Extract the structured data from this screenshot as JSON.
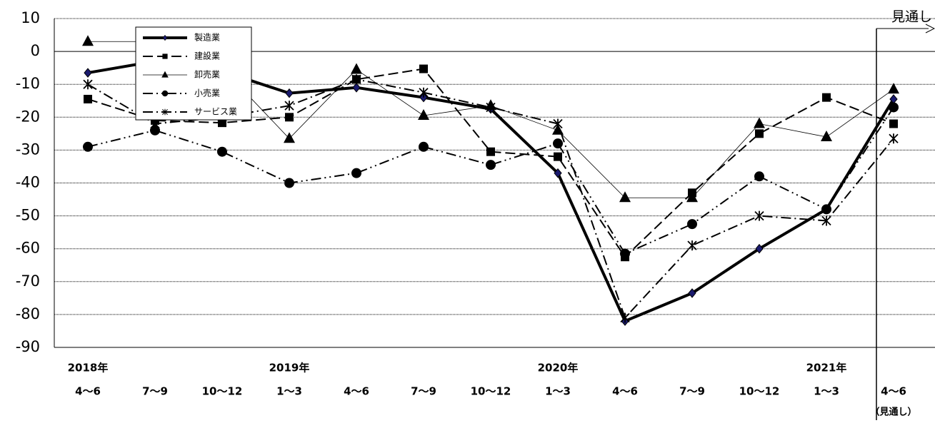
{
  "chart_data": {
    "type": "line",
    "categories": [
      "4～6",
      "7～9",
      "10～12",
      "1～3",
      "4～6",
      "7～9",
      "10～12",
      "1～3",
      "4～6",
      "7～9",
      "10～12",
      "1～3",
      "4～6"
    ],
    "year_labels": [
      "2018年",
      null,
      null,
      "2019年",
      null,
      null,
      null,
      "2020年",
      null,
      null,
      null,
      "2021年",
      null
    ],
    "forecast_label": "見通し",
    "forecast_sublabel": "（見通し）",
    "ylim": [
      -90,
      10
    ],
    "yticks": [
      -90,
      -80,
      -70,
      -60,
      -50,
      -40,
      -30,
      -20,
      -10,
      0,
      10
    ],
    "grid": true,
    "series": [
      {
        "name": "製造業",
        "color": "#000000",
        "marker": "diamond",
        "dash": "solid",
        "width": 4,
        "values": [
          -6.5,
          -3,
          -6,
          -12.7,
          -11,
          -14,
          -17.5,
          -37,
          -82,
          -73.5,
          -60,
          -48,
          -14.5
        ]
      },
      {
        "name": "建設業",
        "color": "#000000",
        "marker": "square",
        "dash": "long",
        "width": 2,
        "values": [
          -14.5,
          -21,
          -21.7,
          -20,
          -8.5,
          -5.3,
          -30.5,
          -32,
          -62.5,
          -43,
          -25,
          -14,
          -22
        ]
      },
      {
        "name": "卸売業",
        "color": "#000000",
        "marker": "triangle",
        "dash": "thin",
        "width": 0.8,
        "values": [
          3,
          3,
          -5,
          -26.5,
          -5.5,
          -19.5,
          -16.5,
          -24,
          -44.5,
          -44.5,
          -22,
          -26,
          -11.5
        ]
      },
      {
        "name": "小売業",
        "color": "#000000",
        "marker": "circle",
        "dash": "dashdotdot",
        "width": 2,
        "values": [
          -29,
          -24,
          -30.5,
          -40,
          -37,
          -29,
          -34.5,
          -28,
          -61.5,
          -52.5,
          -38,
          -48,
          -17
        ]
      },
      {
        "name": "サービス業",
        "color": "#000000",
        "marker": "asterisk",
        "dash": "dashdot",
        "width": 2,
        "values": [
          -10,
          -22,
          -20,
          -16.5,
          -8.5,
          -12.5,
          -17,
          -22,
          -81,
          -59,
          -50,
          -51.5,
          -26.5
        ]
      }
    ]
  }
}
